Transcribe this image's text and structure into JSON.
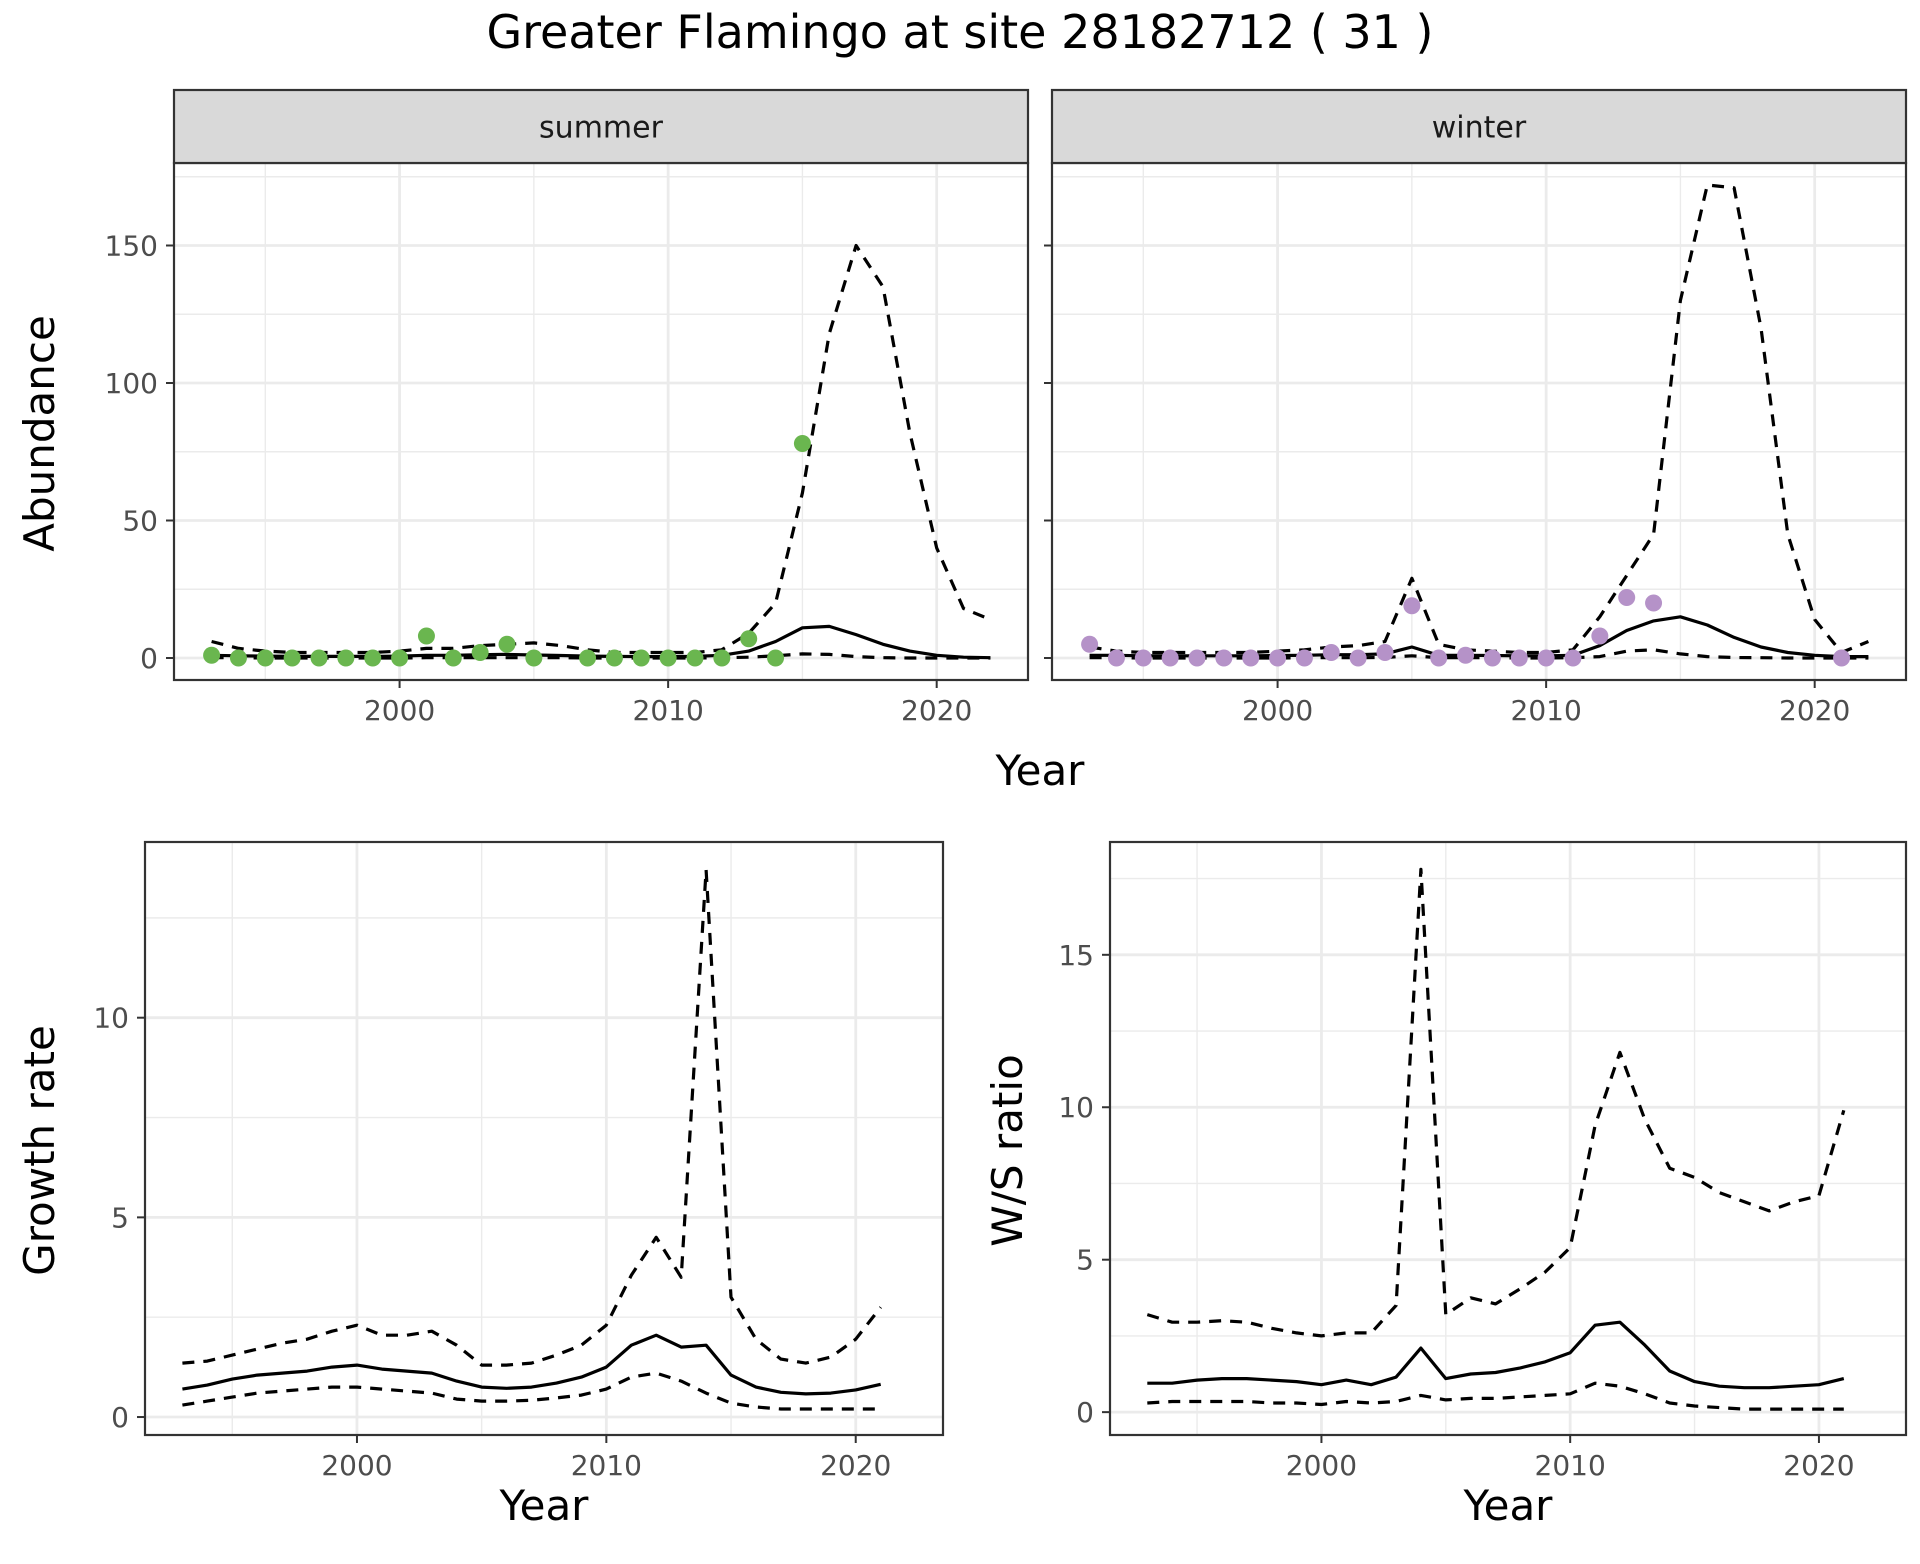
{
  "title": "Greater Flamingo at site 28182712 ( 31 )",
  "colors": {
    "summer_points": "#6ab64f",
    "winter_points": "#b592c8",
    "lines": "#000000",
    "strip_fill": "#d9d9d9",
    "grid": "#ebebeb"
  },
  "chart_data": [
    {
      "type": "line",
      "panel": "summer",
      "strip_label": "summer",
      "ylabel": "Abundance",
      "xlabel": "Year",
      "x_ticks": [
        2000,
        2010,
        2020
      ],
      "y_ticks": [
        0,
        50,
        100,
        150
      ],
      "xlim": [
        1991.6,
        2023.4
      ],
      "ylim": [
        -8,
        180
      ],
      "grid": true,
      "points_color": "#6ab64f",
      "points": {
        "x": [
          1993,
          1994,
          1995,
          1996,
          1997,
          1998,
          1999,
          2000,
          2001,
          2002,
          2003,
          2004,
          2005,
          2007,
          2008,
          2009,
          2010,
          2011,
          2012,
          2013,
          2014,
          2015
        ],
        "y": [
          1,
          0,
          0,
          0,
          0,
          0,
          0,
          0,
          8,
          0,
          2,
          5,
          0,
          0,
          0,
          0,
          0,
          0,
          0,
          7,
          0,
          78
        ]
      },
      "series": [
        {
          "style": "solid",
          "x": [
            1993,
            1994,
            1995,
            1996,
            1997,
            1998,
            1999,
            2000,
            2001,
            2002,
            2003,
            2004,
            2005,
            2006,
            2007,
            2008,
            2009,
            2010,
            2011,
            2012,
            2013,
            2014,
            2015,
            2016,
            2017,
            2018,
            2019,
            2020,
            2021,
            2022
          ],
          "y": [
            1,
            0.8,
            0.7,
            0.6,
            0.6,
            0.6,
            0.6,
            0.7,
            1,
            1,
            1.2,
            1.3,
            1.1,
            0.9,
            0.7,
            0.6,
            0.5,
            0.5,
            0.6,
            1,
            2.5,
            6,
            11,
            11.5,
            8.5,
            5,
            2.5,
            1,
            0.3,
            0.1
          ]
        },
        {
          "style": "dashed",
          "x": [
            1993,
            1994,
            1995,
            1996,
            1997,
            1998,
            1999,
            2000,
            2001,
            2002,
            2003,
            2004,
            2005,
            2006,
            2007,
            2008,
            2009,
            2010,
            2011,
            2012,
            2013,
            2014,
            2015,
            2016,
            2017,
            2018,
            2019,
            2020,
            2021,
            2022
          ],
          "y": [
            6,
            3.5,
            2.5,
            2,
            2,
            2,
            2,
            2.5,
            3.5,
            3.5,
            4.5,
            5,
            5.5,
            4.5,
            3,
            2,
            2,
            2,
            2,
            3,
            9,
            20,
            60,
            118,
            150,
            135,
            82,
            40,
            18,
            14
          ]
        },
        {
          "style": "dashed",
          "x": [
            1993,
            1994,
            1995,
            1996,
            1997,
            1998,
            1999,
            2000,
            2001,
            2002,
            2003,
            2004,
            2005,
            2006,
            2007,
            2008,
            2009,
            2010,
            2011,
            2012,
            2013,
            2014,
            2015,
            2016,
            2017,
            2018,
            2019,
            2020,
            2021,
            2022
          ],
          "y": [
            0.1,
            0.1,
            0,
            0,
            0,
            0,
            0,
            0,
            0.1,
            0.1,
            0.1,
            0.1,
            0.1,
            0.1,
            0,
            0,
            0,
            0,
            0,
            0.1,
            0.3,
            0.8,
            1.5,
            1.3,
            0.5,
            0.1,
            0,
            0,
            0,
            0
          ]
        }
      ]
    },
    {
      "type": "line",
      "panel": "winter",
      "strip_label": "winter",
      "ylabel": "Abundance",
      "xlabel": "Year",
      "x_ticks": [
        2000,
        2010,
        2020
      ],
      "y_ticks": [
        0,
        50,
        100,
        150
      ],
      "xlim": [
        1991.6,
        2023.4
      ],
      "ylim": [
        -8,
        180
      ],
      "grid": true,
      "points_color": "#b592c8",
      "points": {
        "x": [
          1993,
          1994,
          1995,
          1996,
          1997,
          1998,
          1999,
          2000,
          2001,
          2002,
          2003,
          2004,
          2005,
          2006,
          2007,
          2008,
          2009,
          2010,
          2011,
          2012,
          2013,
          2014,
          2021
        ],
        "y": [
          5,
          0,
          0,
          0,
          0,
          0,
          0,
          0,
          0,
          2,
          0,
          2,
          19,
          0,
          1,
          0,
          0,
          0,
          0,
          8,
          22,
          20,
          0
        ]
      },
      "series": [
        {
          "style": "solid",
          "x": [
            1993,
            1994,
            1995,
            1996,
            1997,
            1998,
            1999,
            2000,
            2001,
            2002,
            2003,
            2004,
            2005,
            2006,
            2007,
            2008,
            2009,
            2010,
            2011,
            2012,
            2013,
            2014,
            2015,
            2016,
            2017,
            2018,
            2019,
            2020,
            2021,
            2022
          ],
          "y": [
            1,
            1,
            0.8,
            0.8,
            0.8,
            0.8,
            0.8,
            0.9,
            1,
            1.2,
            1.2,
            1.5,
            4,
            1,
            1,
            0.9,
            0.8,
            0.8,
            1,
            4.5,
            10,
            13.5,
            15,
            12,
            7.5,
            4,
            2,
            1,
            0.5,
            0.5
          ]
        },
        {
          "style": "dashed",
          "x": [
            1993,
            1994,
            1995,
            1996,
            1997,
            1998,
            1999,
            2000,
            2001,
            2002,
            2003,
            2004,
            2005,
            2006,
            2007,
            2008,
            2009,
            2010,
            2011,
            2012,
            2013,
            2014,
            2015,
            2016,
            2017,
            2018,
            2019,
            2020,
            2021,
            2022
          ],
          "y": [
            4,
            2.5,
            2,
            2,
            2,
            2,
            2,
            2.5,
            3,
            4,
            4.5,
            6,
            29,
            5,
            3,
            2.5,
            2,
            2,
            3,
            15,
            30,
            45,
            130,
            172,
            171,
            120,
            45,
            14,
            2,
            6
          ]
        },
        {
          "style": "dashed",
          "x": [
            1993,
            1994,
            1995,
            1996,
            1997,
            1998,
            1999,
            2000,
            2001,
            2002,
            2003,
            2004,
            2005,
            2006,
            2007,
            2008,
            2009,
            2010,
            2011,
            2012,
            2013,
            2014,
            2015,
            2016,
            2017,
            2018,
            2019,
            2020,
            2021,
            2022
          ],
          "y": [
            0.1,
            0.1,
            0,
            0,
            0,
            0,
            0,
            0,
            0.1,
            0.1,
            0.1,
            0.2,
            0.8,
            0.1,
            0.1,
            0.1,
            0,
            0,
            0.1,
            0.5,
            2.5,
            3,
            1.5,
            0.5,
            0.2,
            0.1,
            0,
            0,
            0,
            0
          ]
        }
      ]
    },
    {
      "type": "line",
      "panel": "growth",
      "ylabel": "Growth rate",
      "xlabel": "Year",
      "x_ticks": [
        2000,
        2010,
        2020
      ],
      "y_ticks": [
        0,
        5,
        10
      ],
      "xlim": [
        1991.5,
        2023.5
      ],
      "ylim": [
        -0.45,
        14.4
      ],
      "grid": true,
      "series": [
        {
          "style": "solid",
          "x": [
            1993,
            1994,
            1995,
            1996,
            1997,
            1998,
            1999,
            2000,
            2001,
            2002,
            2003,
            2004,
            2005,
            2006,
            2007,
            2008,
            2009,
            2010,
            2011,
            2012,
            2013,
            2014,
            2015,
            2016,
            2017,
            2018,
            2019,
            2020,
            2021
          ],
          "y": [
            0.7,
            0.8,
            0.95,
            1.05,
            1.1,
            1.15,
            1.25,
            1.3,
            1.2,
            1.15,
            1.1,
            0.9,
            0.75,
            0.72,
            0.75,
            0.85,
            1,
            1.25,
            1.8,
            2.05,
            1.75,
            1.8,
            1.05,
            0.75,
            0.62,
            0.58,
            0.6,
            0.68,
            0.82
          ]
        },
        {
          "style": "dashed",
          "x": [
            1993,
            1994,
            1995,
            1996,
            1997,
            1998,
            1999,
            2000,
            2001,
            2002,
            2003,
            2004,
            2005,
            2006,
            2007,
            2008,
            2009,
            2010,
            2011,
            2012,
            2013,
            2014,
            2015,
            2016,
            2017,
            2018,
            2019,
            2020,
            2021
          ],
          "y": [
            1.35,
            1.4,
            1.55,
            1.7,
            1.85,
            1.95,
            2.15,
            2.3,
            2.05,
            2.05,
            2.15,
            1.8,
            1.3,
            1.3,
            1.35,
            1.55,
            1.8,
            2.3,
            3.55,
            4.5,
            3.5,
            13.7,
            3,
            1.95,
            1.45,
            1.35,
            1.5,
            1.95,
            2.75
          ]
        },
        {
          "style": "dashed",
          "x": [
            1993,
            1994,
            1995,
            1996,
            1997,
            1998,
            1999,
            2000,
            2001,
            2002,
            2003,
            2004,
            2005,
            2006,
            2007,
            2008,
            2009,
            2010,
            2011,
            2012,
            2013,
            2014,
            2015,
            2016,
            2017,
            2018,
            2019,
            2020,
            2021
          ],
          "y": [
            0.3,
            0.4,
            0.5,
            0.6,
            0.65,
            0.7,
            0.75,
            0.75,
            0.7,
            0.65,
            0.6,
            0.45,
            0.4,
            0.4,
            0.42,
            0.48,
            0.55,
            0.7,
            1,
            1.1,
            0.9,
            0.6,
            0.35,
            0.25,
            0.2,
            0.2,
            0.2,
            0.2,
            0.2
          ]
        }
      ]
    },
    {
      "type": "line",
      "panel": "ws_ratio",
      "ylabel": "W/S ratio",
      "xlabel": "Year",
      "x_ticks": [
        2000,
        2010,
        2020
      ],
      "y_ticks": [
        0,
        5,
        10,
        15
      ],
      "xlim": [
        1991.5,
        2023.5
      ],
      "ylim": [
        -0.75,
        18.7
      ],
      "grid": true,
      "series": [
        {
          "style": "solid",
          "x": [
            1993,
            1994,
            1995,
            1996,
            1997,
            1998,
            1999,
            2000,
            2001,
            2002,
            2003,
            2004,
            2005,
            2006,
            2007,
            2008,
            2009,
            2010,
            2011,
            2012,
            2013,
            2014,
            2015,
            2016,
            2017,
            2018,
            2019,
            2020,
            2021
          ],
          "y": [
            0.95,
            0.95,
            1.05,
            1.1,
            1.1,
            1.05,
            1,
            0.9,
            1.05,
            0.9,
            1.15,
            2.1,
            1.1,
            1.25,
            1.3,
            1.45,
            1.65,
            1.95,
            2.85,
            2.95,
            2.2,
            1.35,
            1,
            0.85,
            0.8,
            0.8,
            0.85,
            0.9,
            1.1
          ]
        },
        {
          "style": "dashed",
          "x": [
            1993,
            1994,
            1995,
            1996,
            1997,
            1998,
            1999,
            2000,
            2001,
            2002,
            2003,
            2004,
            2005,
            2006,
            2007,
            2008,
            2009,
            2010,
            2011,
            2012,
            2013,
            2014,
            2015,
            2016,
            2017,
            2018,
            2019,
            2020,
            2021
          ],
          "y": [
            3.2,
            2.95,
            2.95,
            3,
            2.95,
            2.75,
            2.6,
            2.5,
            2.6,
            2.6,
            3.5,
            17.8,
            3.2,
            3.75,
            3.55,
            4.05,
            4.6,
            5.4,
            9.4,
            11.8,
            9.6,
            8,
            7.7,
            7.2,
            6.9,
            6.6,
            6.9,
            7.1,
            9.9
          ]
        },
        {
          "style": "dashed",
          "x": [
            1993,
            1994,
            1995,
            1996,
            1997,
            1998,
            1999,
            2000,
            2001,
            2002,
            2003,
            2004,
            2005,
            2006,
            2007,
            2008,
            2009,
            2010,
            2011,
            2012,
            2013,
            2014,
            2015,
            2016,
            2017,
            2018,
            2019,
            2020,
            2021
          ],
          "y": [
            0.3,
            0.35,
            0.35,
            0.35,
            0.35,
            0.3,
            0.3,
            0.25,
            0.35,
            0.3,
            0.35,
            0.55,
            0.4,
            0.45,
            0.45,
            0.5,
            0.55,
            0.6,
            0.95,
            0.85,
            0.6,
            0.3,
            0.2,
            0.15,
            0.1,
            0.1,
            0.1,
            0.1,
            0.1
          ]
        }
      ]
    }
  ]
}
